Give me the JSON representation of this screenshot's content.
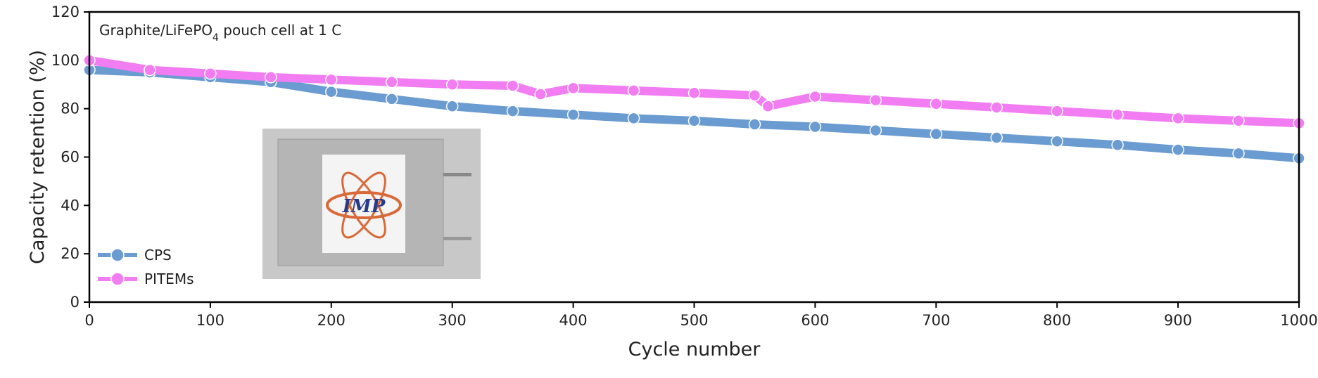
{
  "chart_data": {
    "type": "line",
    "annotation": [
      "Graphite/LiFePO",
      "4",
      " pouch cell at 1 C"
    ],
    "inset_label": "IMP",
    "xlabel": "Cycle number",
    "ylabel": "Capacity retention (%)",
    "xlim": [
      0,
      1000
    ],
    "ylim": [
      0,
      120
    ],
    "xticks": [
      0,
      100,
      200,
      300,
      400,
      500,
      600,
      700,
      800,
      900,
      1000
    ],
    "yticks": [
      0,
      20,
      40,
      60,
      80,
      100,
      120
    ],
    "legend": "lower left",
    "series": [
      {
        "name": "CPS",
        "color": "#6a9bd1",
        "x": [
          0,
          50,
          100,
          150,
          200,
          250,
          300,
          350,
          400,
          450,
          500,
          550,
          600,
          650,
          700,
          750,
          800,
          850,
          900,
          950,
          1000
        ],
        "values": [
          96,
          95,
          93,
          91,
          87,
          84,
          81,
          79,
          77.5,
          76,
          75,
          73.5,
          72.5,
          71,
          69.5,
          68,
          66.5,
          65,
          63,
          61.5,
          59.5
        ]
      },
      {
        "name": "PITEMs",
        "color": "#f27cf2",
        "x": [
          0,
          50,
          100,
          150,
          200,
          250,
          300,
          350,
          373,
          400,
          450,
          500,
          550,
          561,
          600,
          650,
          700,
          750,
          800,
          850,
          900,
          950,
          1000
        ],
        "values": [
          100,
          96,
          94.5,
          93,
          92,
          91,
          90,
          89.5,
          86,
          88.5,
          87.5,
          86.5,
          85.5,
          81,
          85,
          83.5,
          82,
          80.5,
          79,
          77.5,
          76,
          75,
          74
        ]
      }
    ]
  }
}
